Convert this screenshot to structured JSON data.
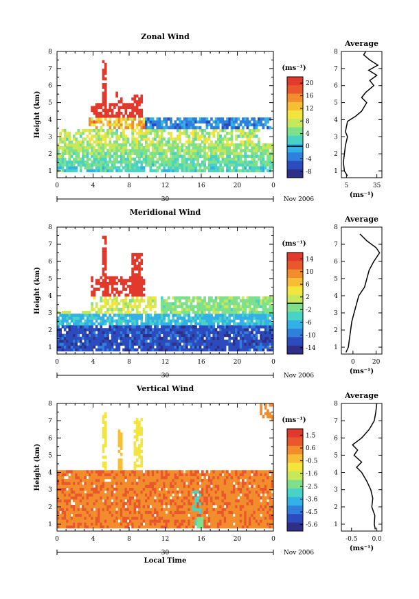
{
  "chart_data": [
    {
      "type": "heatmap",
      "title": "Zonal Wind",
      "ylabel": "Height (km)",
      "x_ticks": [
        "0",
        "4",
        "8",
        "12",
        "16",
        "20",
        "0"
      ],
      "x_range": [
        0,
        24
      ],
      "y_ticks": [
        "1",
        "2",
        "3",
        "4",
        "5",
        "6",
        "7",
        "8"
      ],
      "y_range": [
        0.6,
        8.0
      ],
      "date_marker": "30",
      "date_label": "Nov 2006",
      "colorbar": {
        "unit_label": "(ms⁻¹)",
        "ticks": [
          "20",
          "16",
          "12",
          "8",
          "4",
          "0",
          "-4",
          "-8"
        ],
        "range": [
          -10,
          22
        ],
        "zero_line": 0
      },
      "profile": {
        "title": "Average",
        "xlabel": "(ms⁻¹)",
        "x_ticks": [
          "5",
          "35"
        ],
        "x_range": [
          0,
          40
        ],
        "y_ticks": [
          "1",
          "2",
          "3",
          "4",
          "5",
          "6",
          "7",
          "8"
        ],
        "heights": [
          0.7,
          1.0,
          1.5,
          2.0,
          2.5,
          3.0,
          3.3,
          3.6,
          3.9,
          4.2,
          4.5,
          4.8,
          5.0,
          5.3,
          5.6,
          6.0,
          6.3,
          6.6,
          6.9,
          7.2,
          7.5,
          7.8,
          8.0
        ],
        "values": [
          6,
          3,
          2,
          3,
          4,
          6,
          4,
          5,
          6,
          14,
          20,
          23,
          25,
          20,
          24,
          32,
          28,
          35,
          27,
          36,
          28,
          22,
          24
        ]
      }
    },
    {
      "type": "heatmap",
      "title": "Meridional Wind",
      "ylabel": "Height (km)",
      "x_ticks": [
        "0",
        "4",
        "8",
        "12",
        "16",
        "20",
        "0"
      ],
      "x_range": [
        0,
        24
      ],
      "y_ticks": [
        "1",
        "2",
        "3",
        "4",
        "5",
        "6",
        "7",
        "8"
      ],
      "y_range": [
        0.6,
        8.0
      ],
      "date_marker": "30",
      "date_label": "Nov 2006",
      "colorbar": {
        "unit_label": "(ms⁻¹)",
        "ticks": [
          "14",
          "10",
          "6",
          "2",
          "-2",
          "-6",
          "-10",
          "-14"
        ],
        "range": [
          -16,
          16
        ],
        "zero_line": 0
      },
      "profile": {
        "title": "Average",
        "xlabel": "(ms⁻¹)",
        "x_ticks": [
          "0",
          "20"
        ],
        "x_range": [
          -10,
          25
        ],
        "y_ticks": [
          "1",
          "2",
          "3",
          "4",
          "5",
          "6",
          "7",
          "8"
        ],
        "heights": [
          0.7,
          1.0,
          1.5,
          2.0,
          2.5,
          3.0,
          3.5,
          4.0,
          4.5,
          5.0,
          5.5,
          6.0,
          6.5,
          6.8,
          7.2,
          7.6
        ],
        "values": [
          -6,
          -4,
          -3,
          -2,
          -1,
          1,
          3,
          5,
          10,
          12,
          14,
          18,
          23,
          20,
          12,
          6
        ]
      }
    },
    {
      "type": "heatmap",
      "title": "Vertical Wind",
      "ylabel": "Height (km)",
      "xlabel": "Local Time",
      "x_ticks": [
        "0",
        "4",
        "8",
        "12",
        "16",
        "20",
        "0"
      ],
      "x_range": [
        0,
        24
      ],
      "y_ticks": [
        "1",
        "2",
        "3",
        "4",
        "5",
        "6",
        "7",
        "8"
      ],
      "y_range": [
        0.6,
        8.0
      ],
      "date_marker": "30",
      "date_label": "Nov 2006",
      "colorbar": {
        "unit_label": "(ms⁻¹)",
        "ticks": [
          "1.5",
          "0.6",
          "-0.5",
          "-1.6",
          "-2.5",
          "-3.6",
          "-4.5",
          "-5.6"
        ],
        "range": [
          -6.1,
          2.0
        ]
      },
      "profile": {
        "title": "Average",
        "xlabel": "(ms⁻¹)",
        "x_ticks": [
          "-0.5",
          "0.0"
        ],
        "x_range": [
          -0.7,
          0.1
        ],
        "y_ticks": [
          "1",
          "2",
          "3",
          "4",
          "5",
          "6",
          "7",
          "8"
        ],
        "heights": [
          0.7,
          1.0,
          1.5,
          2.0,
          2.5,
          3.0,
          3.5,
          4.0,
          4.3,
          4.6,
          5.0,
          5.3,
          5.6,
          6.0,
          6.5,
          7.0,
          7.5,
          8.0
        ],
        "values": [
          -0.03,
          -0.05,
          -0.04,
          -0.1,
          -0.08,
          -0.12,
          -0.2,
          -0.3,
          -0.4,
          -0.3,
          -0.45,
          -0.38,
          -0.48,
          -0.3,
          -0.15,
          -0.05,
          -0.02,
          0.0
        ]
      }
    }
  ]
}
